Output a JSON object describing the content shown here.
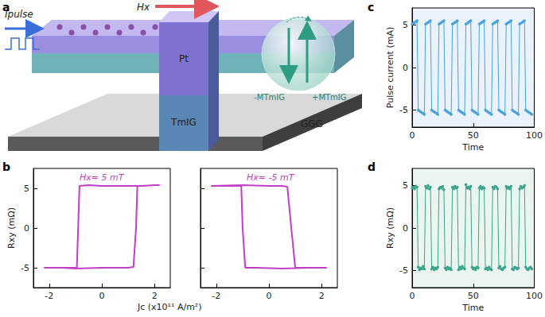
{
  "panels": [
    "a",
    "b",
    "c",
    "d"
  ],
  "diagram": {
    "labels": [
      "Ipulse",
      "Hx",
      "Pt",
      "TmIG",
      "GGG",
      "-MTmIG",
      "+MTmIG"
    ]
  },
  "chart_data": [
    {
      "type": "line",
      "annotation": "Hx= 5 mT",
      "xlabel": "Jc (x10¹¹ A/m²)",
      "ylabel": "Rxy (mΩ)",
      "color": "#c13fc4",
      "x": [
        -2.2,
        -1.5,
        -1.0,
        0,
        1.0,
        1.2,
        1.3,
        1.35,
        1.5,
        2.0,
        2.2,
        2.0,
        1.0,
        0,
        -0.5,
        -0.85,
        -0.9,
        -0.95,
        -1.5,
        -2.2
      ],
      "values": [
        -5.0,
        -5.0,
        -5.1,
        -5.0,
        -5.0,
        -4.9,
        0,
        5.3,
        5.3,
        5.4,
        5.4,
        5.4,
        5.3,
        5.3,
        5.4,
        5.3,
        0,
        -5.0,
        -5.0,
        -5.0
      ],
      "xlim": [
        -2.6,
        2.6
      ],
      "xticks": [
        -2,
        0,
        2
      ],
      "ylim": [
        -7.5,
        7.5
      ],
      "yticks": [
        -5,
        0,
        5
      ],
      "grid": false
    },
    {
      "type": "line",
      "annotation": "Hx= -5 mT",
      "color": "#c13fc4",
      "x": [
        -2.2,
        -1.0,
        0,
        0.5,
        0.7,
        0.85,
        1.0,
        1.5,
        2.2,
        1.5,
        0.5,
        -0.5,
        -0.9,
        -1.0,
        -1.05,
        -1.5,
        -2.2
      ],
      "values": [
        5.3,
        5.4,
        5.3,
        5.3,
        5.2,
        0,
        -5.0,
        -5.0,
        -5.0,
        -5.0,
        -5.1,
        -5.0,
        -5.0,
        0,
        5.3,
        5.3,
        5.3
      ],
      "xlim": [
        -2.6,
        2.6
      ],
      "xticks": [
        -2,
        0,
        2
      ],
      "ylim": [
        -7.5,
        7.5
      ],
      "yticks": [
        -5,
        0,
        5
      ],
      "grid": false,
      "tick_labels": "x"
    },
    {
      "type": "line",
      "marker": "circle",
      "xlabel": "Time",
      "ylabel": "Pulse current (mA)",
      "color": "#4aa3df",
      "x": [
        0,
        1,
        2,
        3,
        4,
        5,
        6,
        7,
        8,
        9,
        10,
        11,
        12,
        13,
        14,
        15,
        16,
        17,
        18,
        19,
        20,
        21,
        22,
        23,
        24,
        25,
        26,
        27,
        28,
        29,
        30,
        31,
        32,
        33,
        34,
        35,
        36,
        37,
        38,
        39,
        40,
        41,
        42,
        43,
        44,
        45,
        46,
        47,
        48,
        49,
        50,
        51,
        52,
        53,
        54,
        55,
        56,
        57,
        58,
        59,
        60,
        61,
        62,
        63,
        64,
        65,
        66,
        67,
        68,
        69,
        70,
        71,
        72,
        73,
        74,
        75,
        76,
        77,
        78,
        79,
        80,
        81,
        82,
        83,
        84,
        85,
        86,
        87,
        88,
        89,
        90,
        91,
        92,
        93,
        94,
        95,
        96,
        97,
        98
      ],
      "values": [
        5.1,
        5.2,
        5.3,
        5.4,
        5.5,
        -5.0,
        -5.1,
        -5.2,
        -5.3,
        -5.4,
        -5.5,
        5.1,
        5.2,
        5.3,
        5.4,
        5.5,
        -5.0,
        -5.1,
        -5.2,
        -5.3,
        -5.4,
        -5.5,
        5.1,
        5.2,
        5.3,
        5.4,
        5.5,
        -5.0,
        -5.1,
        -5.2,
        -5.3,
        -5.4,
        -5.5,
        5.1,
        5.2,
        5.3,
        5.4,
        5.5,
        -5.0,
        -5.1,
        -5.2,
        -5.3,
        -5.4,
        -5.5,
        5.1,
        5.2,
        5.3,
        5.4,
        5.5,
        -5.0,
        -5.1,
        -5.2,
        -5.3,
        -5.4,
        -5.5,
        5.1,
        5.2,
        5.3,
        5.4,
        5.5,
        -5.0,
        -5.1,
        -5.2,
        -5.3,
        -5.4,
        -5.5,
        5.1,
        5.2,
        5.3,
        5.4,
        5.5,
        -5.0,
        -5.1,
        -5.2,
        -5.3,
        -5.4,
        -5.5,
        5.1,
        5.2,
        5.3,
        5.4,
        5.5,
        -5.0,
        -5.1,
        -5.2,
        -5.3,
        -5.4,
        -5.5,
        5.1,
        5.2,
        5.3,
        5.4,
        5.5,
        -5.0,
        -5.1,
        -5.2,
        -5.3,
        -5.4,
        -5.5
      ],
      "xlim": [
        0,
        100
      ],
      "xticks": [
        0,
        50,
        100
      ],
      "ylim": [
        -7,
        7
      ],
      "yticks": [
        -5,
        0,
        5
      ],
      "grid": false
    },
    {
      "type": "line",
      "marker": "circle",
      "xlabel": "Time",
      "ylabel": "Rxy (mΩ)",
      "color": "#3aa38a",
      "x": [
        0,
        1,
        2,
        3,
        4,
        5,
        6,
        7,
        8,
        9,
        10,
        11,
        12,
        13,
        14,
        15,
        16,
        17,
        18,
        19,
        20,
        21,
        22,
        23,
        24,
        25,
        26,
        27,
        28,
        29,
        30,
        31,
        32,
        33,
        34,
        35,
        36,
        37,
        38,
        39,
        40,
        41,
        42,
        43,
        44,
        45,
        46,
        47,
        48,
        49,
        50,
        51,
        52,
        53,
        54,
        55,
        56,
        57,
        58,
        59,
        60,
        61,
        62,
        63,
        64,
        65,
        66,
        67,
        68,
        69,
        70,
        71,
        72,
        73,
        74,
        75,
        76,
        77,
        78,
        79,
        80,
        81,
        82,
        83,
        84,
        85,
        86,
        87,
        88,
        89,
        90,
        91,
        92,
        93,
        94,
        95,
        96,
        97,
        98
      ],
      "values": [
        4.7,
        4.8,
        4.6,
        4.9,
        4.8,
        -4.6,
        -4.9,
        -4.7,
        -4.8,
        -4.5,
        -4.8,
        4.9,
        4.7,
        5.0,
        4.6,
        4.8,
        -4.8,
        -4.6,
        -4.9,
        -4.7,
        -4.8,
        -4.6,
        4.6,
        4.8,
        4.7,
        4.9,
        4.5,
        -4.7,
        -4.9,
        -4.6,
        -4.8,
        -4.7,
        -4.9,
        4.8,
        4.6,
        4.9,
        4.7,
        4.8,
        -4.9,
        -4.6,
        -4.8,
        -4.5,
        -4.7,
        -4.8,
        5.1,
        4.7,
        4.8,
        4.6,
        4.9,
        -4.6,
        -4.8,
        -4.7,
        -4.9,
        -4.6,
        -4.7,
        4.7,
        4.9,
        4.6,
        4.8,
        4.7,
        -4.8,
        -4.7,
        -4.9,
        -4.6,
        -4.8,
        -4.9,
        4.8,
        4.6,
        4.9,
        4.8,
        4.6,
        -4.7,
        -4.5,
        -4.8,
        -4.9,
        -4.7,
        -4.6,
        4.9,
        4.7,
        4.8,
        4.6,
        4.9,
        -4.8,
        -4.9,
        -4.6,
        -4.7,
        -4.8,
        -4.7,
        4.6,
        4.9,
        4.7,
        4.8,
        5.0,
        -4.6,
        -4.8,
        -4.9,
        -4.7,
        -4.6,
        -4.8
      ],
      "xlim": [
        0,
        100
      ],
      "xticks": [
        0,
        50,
        100
      ],
      "ylim": [
        -7,
        7
      ],
      "yticks": [
        -5,
        0,
        5
      ],
      "grid": false
    }
  ]
}
